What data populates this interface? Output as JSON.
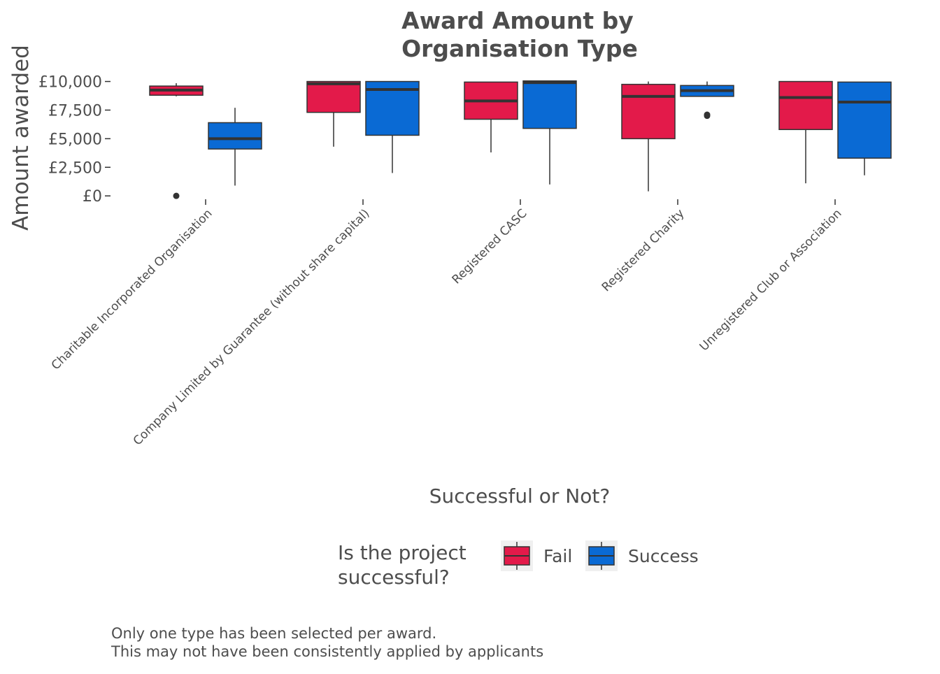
{
  "chart_data": {
    "type": "boxplot",
    "title": [
      "Award Amount by",
      "Organisation Type"
    ],
    "xlabel": "Successful or Not?",
    "ylabel": "Amount awarded",
    "ylim": [
      -600,
      10400
    ],
    "yticks": [
      {
        "value": 0,
        "label": "£0"
      },
      {
        "value": 2500,
        "label": "£2,500"
      },
      {
        "value": 5000,
        "label": "£5,000"
      },
      {
        "value": 7500,
        "label": "£7,500"
      },
      {
        "value": 10000,
        "label": "£10,000"
      }
    ],
    "grid": false,
    "categories": [
      "Charitable Incorporated Organisation",
      "Company Limited by Guarantee (without share capital)",
      "Registered CASC",
      "Registered Charity",
      "Unregistered Club or Association"
    ],
    "series": [
      {
        "name": "Fail",
        "color": "#e31a4a",
        "boxes": [
          {
            "whisker_low": 8700,
            "q1": 8800,
            "median": 9250,
            "q3": 9600,
            "whisker_high": 9850,
            "outliers": [
              0
            ]
          },
          {
            "whisker_low": 4300,
            "q1": 7300,
            "median": 9800,
            "q3": 10000,
            "whisker_high": 10000,
            "outliers": []
          },
          {
            "whisker_low": 3800,
            "q1": 6700,
            "median": 8300,
            "q3": 9950,
            "whisker_high": 9950,
            "outliers": []
          },
          {
            "whisker_low": 400,
            "q1": 5000,
            "median": 8700,
            "q3": 9750,
            "whisker_high": 10000,
            "outliers": []
          },
          {
            "whisker_low": 1100,
            "q1": 5800,
            "median": 8600,
            "q3": 10000,
            "whisker_high": 10000,
            "outliers": []
          }
        ]
      },
      {
        "name": "Success",
        "color": "#0a6ad4",
        "boxes": [
          {
            "whisker_low": 900,
            "q1": 4100,
            "median": 5000,
            "q3": 6400,
            "whisker_high": 7700,
            "outliers": []
          },
          {
            "whisker_low": 2000,
            "q1": 5300,
            "median": 9300,
            "q3": 10000,
            "whisker_high": 10000,
            "outliers": []
          },
          {
            "whisker_low": 1000,
            "q1": 5900,
            "median": 9900,
            "q3": 10050,
            "whisker_high": 10050,
            "outliers": []
          },
          {
            "whisker_low": 8700,
            "q1": 8700,
            "median": 9200,
            "q3": 9650,
            "whisker_high": 10000,
            "outliers": [
              7000,
              7100
            ]
          },
          {
            "whisker_low": 1800,
            "q1": 3300,
            "median": 8200,
            "q3": 9950,
            "whisker_high": 9950,
            "outliers": []
          }
        ]
      }
    ],
    "legend": {
      "title": [
        "Is the project",
        "successful?"
      ],
      "position": "bottom",
      "entries": [
        "Fail",
        "Success"
      ]
    },
    "caption": [
      "Only one type has been selected per award.",
      "This may not have been consistently applied by applicants"
    ]
  }
}
